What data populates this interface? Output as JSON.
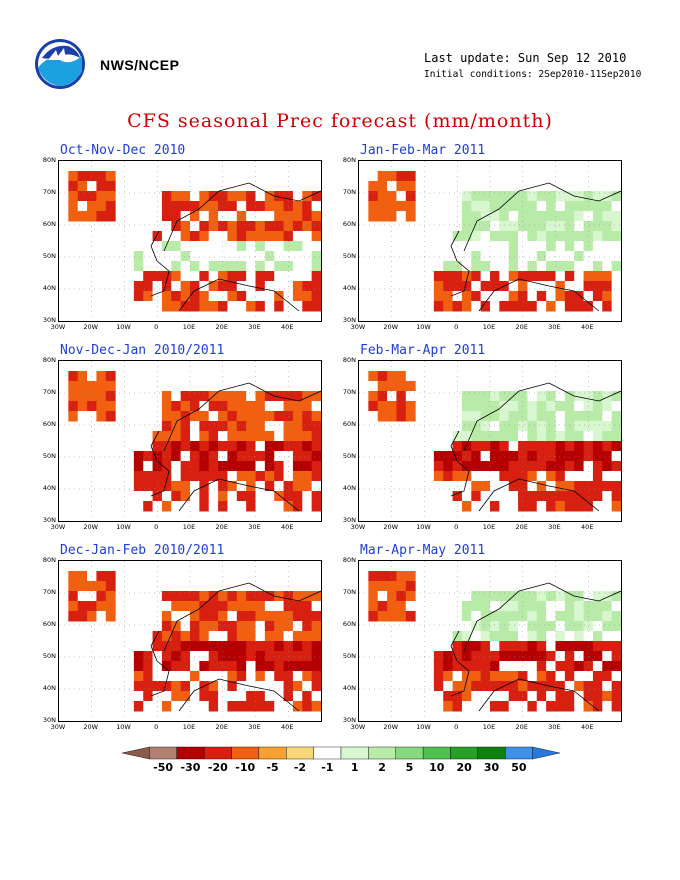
{
  "header": {
    "agency": "NWS/NCEP",
    "last_update": "Last update: Sun Sep 12 2010",
    "initial_conditions": "Initial conditions: 2Sep2010-11Sep2010",
    "logo_icon": "noaa-logo-icon"
  },
  "main_title": "CFS seasonal Prec forecast (mm/month)",
  "panels": [
    {
      "title": "Oct-Nov-Dec 2010"
    },
    {
      "title": "Jan-Feb-Mar 2011"
    },
    {
      "title": "Nov-Dec-Jan 2010/2011"
    },
    {
      "title": "Feb-Mar-Apr 2011"
    },
    {
      "title": "Dec-Jan-Feb 2010/2011"
    },
    {
      "title": "Mar-Apr-May 2011"
    }
  ],
  "axes": {
    "lat_labels": [
      "80N",
      "70N",
      "60N",
      "50N",
      "40N",
      "30N"
    ],
    "lon_labels": [
      "30W",
      "20W",
      "10W",
      "0",
      "10E",
      "20E",
      "30E",
      "40E"
    ]
  },
  "legend": {
    "labels": [
      "-50",
      "-30",
      "-20",
      "-10",
      "-5",
      "-2",
      "-1",
      "1",
      "2",
      "5",
      "10",
      "20",
      "30",
      "50"
    ],
    "colors": [
      "#8a5a4a",
      "#b08070",
      "#b40000",
      "#d82010",
      "#f06010",
      "#f8a030",
      "#f8d878",
      "#ffffff",
      "#d8f6d0",
      "#b8eaa8",
      "#88d880",
      "#50c050",
      "#28a028",
      "#108010",
      "#4090e8",
      "#2878e0"
    ]
  }
}
